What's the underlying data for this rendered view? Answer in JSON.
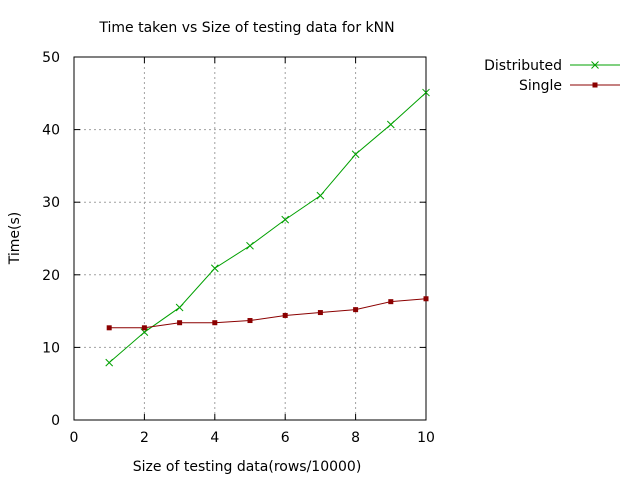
{
  "chart_data": {
    "type": "line",
    "title": "Time taken vs Size of testing data for kNN",
    "xlabel": "Size of testing data(rows/10000)",
    "ylabel": "Time(s)",
    "xlim": [
      0,
      10
    ],
    "ylim": [
      0,
      50
    ],
    "xticks": [
      0,
      2,
      4,
      6,
      8,
      10
    ],
    "yticks": [
      0,
      10,
      20,
      30,
      40,
      50
    ],
    "grid": true,
    "legend_position": "top-right outside plot",
    "x": [
      1,
      2,
      3,
      4,
      5,
      6,
      7,
      8,
      9,
      10
    ],
    "series": [
      {
        "name": "Distributed",
        "values": [
          7.9,
          12.1,
          15.5,
          20.9,
          24.0,
          27.6,
          30.9,
          36.6,
          40.7,
          45.1
        ],
        "color": "#00a000",
        "marker": "x"
      },
      {
        "name": "Single",
        "values": [
          12.7,
          12.7,
          13.4,
          13.4,
          13.7,
          14.4,
          14.8,
          15.2,
          16.3,
          16.7
        ],
        "color": "#8b0000",
        "marker": "square"
      }
    ]
  }
}
